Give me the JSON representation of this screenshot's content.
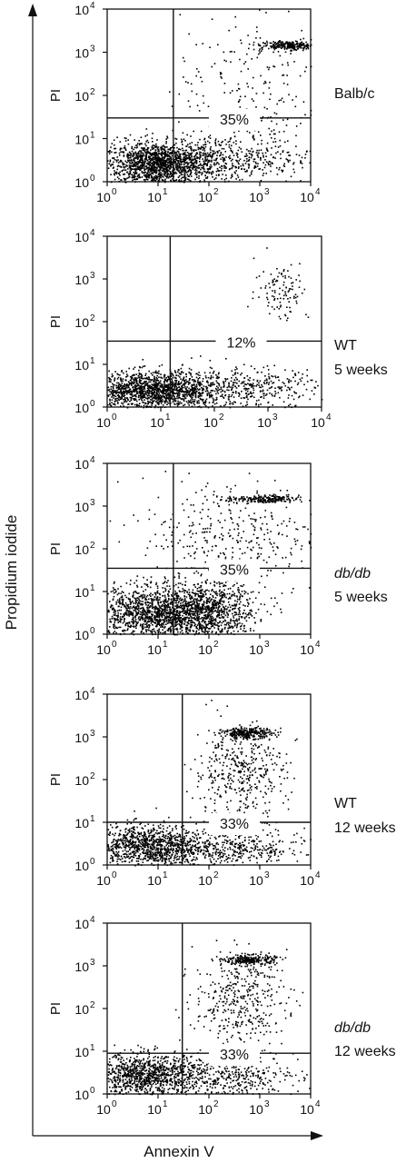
{
  "figure": {
    "y_axis_label": "Propidium iodide",
    "x_axis_label": "Annexin V"
  },
  "chart_data": [
    {
      "type": "scatter",
      "ylabel": "PI",
      "x_scale": "log",
      "y_scale": "log",
      "xlim": [
        1,
        10000
      ],
      "ylim": [
        1,
        10000
      ],
      "x_ticks": [
        "10",
        "10",
        "10",
        "10",
        "10"
      ],
      "x_tick_exp": [
        "0",
        "1",
        "2",
        "3",
        "4"
      ],
      "y_ticks": [
        "10",
        "10",
        "10",
        "10",
        "10"
      ],
      "y_tick_exp": [
        "0",
        "1",
        "2",
        "3",
        "4"
      ],
      "quadrant_gate": [
        20,
        30
      ],
      "annotation": "35%",
      "group_label": [
        "Balb/c"
      ],
      "populations": [
        {
          "cx": 1.0,
          "cy": 0.42,
          "sx": 0.55,
          "sy": 0.25,
          "n": 1500
        },
        {
          "cx": 2.4,
          "cy": 0.55,
          "sx": 0.8,
          "sy": 0.3,
          "n": 450
        },
        {
          "cx": 3.55,
          "cy": 3.17,
          "sx": 0.28,
          "sy": 0.05,
          "n": 260
        },
        {
          "cx": 2.8,
          "cy": 2.2,
          "sx": 0.7,
          "sy": 0.9,
          "n": 220
        }
      ]
    },
    {
      "type": "scatter",
      "ylabel": "PI",
      "x_scale": "log",
      "y_scale": "log",
      "xlim": [
        1,
        10000
      ],
      "ylim": [
        1,
        10000
      ],
      "x_ticks": [
        "10",
        "10",
        "10",
        "10",
        "10"
      ],
      "x_tick_exp": [
        "0",
        "1",
        "2",
        "3",
        "4"
      ],
      "y_ticks": [
        "10",
        "10",
        "10",
        "10",
        "10"
      ],
      "y_tick_exp": [
        "0",
        "1",
        "2",
        "3",
        "4"
      ],
      "quadrant_gate": [
        15,
        35
      ],
      "annotation": "12%",
      "group_label": [
        "WT",
        "5 weeks"
      ],
      "populations": [
        {
          "cx": 0.9,
          "cy": 0.4,
          "sx": 0.6,
          "sy": 0.22,
          "n": 1500
        },
        {
          "cx": 2.6,
          "cy": 0.45,
          "sx": 0.7,
          "sy": 0.25,
          "n": 380
        },
        {
          "cx": 3.25,
          "cy": 2.75,
          "sx": 0.25,
          "sy": 0.35,
          "n": 110
        }
      ]
    },
    {
      "type": "scatter",
      "ylabel": "PI",
      "x_scale": "log",
      "y_scale": "log",
      "xlim": [
        1,
        10000
      ],
      "ylim": [
        1,
        10000
      ],
      "x_ticks": [
        "10",
        "10",
        "10",
        "10",
        "10"
      ],
      "x_tick_exp": [
        "0",
        "1",
        "2",
        "3",
        "4"
      ],
      "y_ticks": [
        "10",
        "10",
        "10",
        "10",
        "10"
      ],
      "y_tick_exp": [
        "0",
        "1",
        "2",
        "3",
        "4"
      ],
      "quadrant_gate": [
        20,
        35
      ],
      "annotation": "35%",
      "group_label": [
        "db/db",
        "5 weeks"
      ],
      "populations": [
        {
          "cx": 0.9,
          "cy": 0.5,
          "sx": 0.7,
          "sy": 0.3,
          "n": 1300
        },
        {
          "cx": 1.9,
          "cy": 0.55,
          "sx": 0.5,
          "sy": 0.35,
          "n": 900
        },
        {
          "cx": 3.05,
          "cy": 3.17,
          "sx": 0.35,
          "sy": 0.05,
          "n": 220
        },
        {
          "cx": 2.4,
          "cy": 2.3,
          "sx": 0.9,
          "sy": 0.7,
          "n": 380
        }
      ]
    },
    {
      "type": "scatter",
      "ylabel": "PI",
      "x_scale": "log",
      "y_scale": "log",
      "xlim": [
        1,
        10000
      ],
      "ylim": [
        1,
        10000
      ],
      "x_ticks": [
        "10",
        "10",
        "10",
        "10",
        "10"
      ],
      "x_tick_exp": [
        "0",
        "1",
        "2",
        "3",
        "4"
      ],
      "y_ticks": [
        "10",
        "10",
        "10",
        "10",
        "10"
      ],
      "y_tick_exp": [
        "0",
        "1",
        "2",
        "3",
        "4"
      ],
      "quadrant_gate": [
        30,
        10
      ],
      "annotation": "33%",
      "group_label": [
        "WT",
        "12 weeks"
      ],
      "populations": [
        {
          "cx": 0.75,
          "cy": 0.45,
          "sx": 0.55,
          "sy": 0.25,
          "n": 1000
        },
        {
          "cx": 2.3,
          "cy": 0.4,
          "sx": 0.8,
          "sy": 0.25,
          "n": 500
        },
        {
          "cx": 2.75,
          "cy": 3.1,
          "sx": 0.25,
          "sy": 0.06,
          "n": 260
        },
        {
          "cx": 2.6,
          "cy": 2.2,
          "sx": 0.45,
          "sy": 0.55,
          "n": 420
        }
      ]
    },
    {
      "type": "scatter",
      "ylabel": "PI",
      "x_scale": "log",
      "y_scale": "log",
      "xlim": [
        1,
        10000
      ],
      "ylim": [
        1,
        10000
      ],
      "x_ticks": [
        "10",
        "10",
        "10",
        "10",
        "10"
      ],
      "x_tick_exp": [
        "0",
        "1",
        "2",
        "3",
        "4"
      ],
      "y_ticks": [
        "10",
        "10",
        "10",
        "10",
        "10"
      ],
      "y_tick_exp": [
        "0",
        "1",
        "2",
        "3",
        "4"
      ],
      "quadrant_gate": [
        30,
        9
      ],
      "annotation": "33%",
      "group_label": [
        "db/db",
        "12 weeks"
      ],
      "populations": [
        {
          "cx": 0.75,
          "cy": 0.45,
          "sx": 0.55,
          "sy": 0.25,
          "n": 1000
        },
        {
          "cx": 2.2,
          "cy": 0.4,
          "sx": 0.8,
          "sy": 0.25,
          "n": 450
        },
        {
          "cx": 2.8,
          "cy": 3.15,
          "sx": 0.25,
          "sy": 0.06,
          "n": 260
        },
        {
          "cx": 2.6,
          "cy": 2.2,
          "sx": 0.45,
          "sy": 0.55,
          "n": 400
        }
      ]
    }
  ]
}
